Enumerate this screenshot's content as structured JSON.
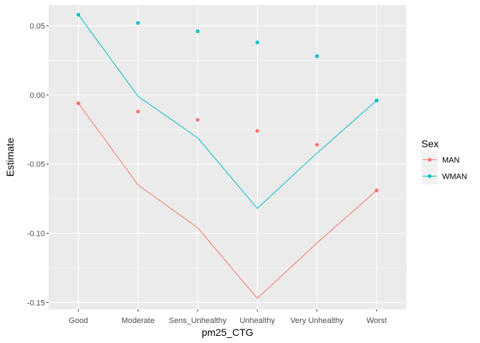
{
  "chart_data": {
    "type": "line",
    "xlabel": "pm25_CTG",
    "ylabel": "Estimate",
    "categories": [
      "Good",
      "Moderate",
      "Sens_Unhealthy",
      "Unhealthy",
      "Very Unhealthy",
      "Worst"
    ],
    "ylim": [
      -0.155,
      0.065
    ],
    "yticks": [
      0.05,
      0.0,
      -0.05,
      -0.1,
      -0.15
    ],
    "ytick_labels": [
      "0.05",
      "0.00",
      "-0.05",
      "-0.10",
      "-0.15"
    ],
    "grid": true,
    "legend": {
      "title": "Sex",
      "position": "right"
    },
    "series": [
      {
        "name": "MAN",
        "color": "#F8766D",
        "points": [
          -0.006,
          -0.012,
          -0.018,
          -0.026,
          -0.036,
          -0.069
        ],
        "line": [
          -0.006,
          -0.065,
          -0.096,
          -0.147,
          -0.107,
          -0.069
        ]
      },
      {
        "name": "WMAN",
        "color": "#00BFC4",
        "points": [
          0.058,
          0.052,
          0.046,
          0.038,
          0.028,
          -0.004
        ],
        "line": [
          0.058,
          -0.001,
          -0.031,
          -0.082,
          -0.042,
          -0.004
        ]
      }
    ]
  }
}
